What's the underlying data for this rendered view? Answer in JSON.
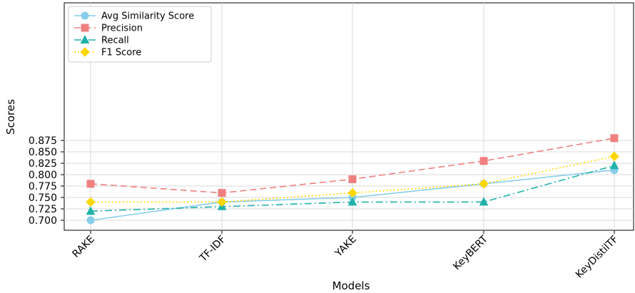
{
  "chart_data": {
    "type": "line",
    "categories": [
      "RAKE",
      "TF-IDF",
      "YAKE",
      "KeyBERT",
      "KeyDistilTF"
    ],
    "xlabel": "Models",
    "ylabel": "Scores",
    "ylim": [
      0.69,
      0.885
    ],
    "yticks": [
      "0.700",
      "0.725",
      "0.750",
      "0.775",
      "0.800",
      "0.825",
      "0.850",
      "0.875"
    ],
    "grid": true,
    "legend_position": "top-left",
    "series": [
      {
        "name": "Avg Similarity Score",
        "values": [
          0.7,
          0.74,
          0.75,
          0.78,
          0.81
        ],
        "color": "#87CEEB",
        "dash": "solid",
        "marker": "circle"
      },
      {
        "name": "Precision",
        "values": [
          0.78,
          0.76,
          0.79,
          0.83,
          0.88
        ],
        "color": "#F08080",
        "dash": "dashed",
        "marker": "square"
      },
      {
        "name": "Recall",
        "values": [
          0.72,
          0.73,
          0.74,
          0.74,
          0.82
        ],
        "color": "#20B2AA",
        "dash": "dashdot",
        "marker": "triangle"
      },
      {
        "name": "F1 Score",
        "values": [
          0.74,
          0.74,
          0.76,
          0.78,
          0.84
        ],
        "color": "#FFD700",
        "dash": "dotted",
        "marker": "diamond"
      }
    ]
  }
}
